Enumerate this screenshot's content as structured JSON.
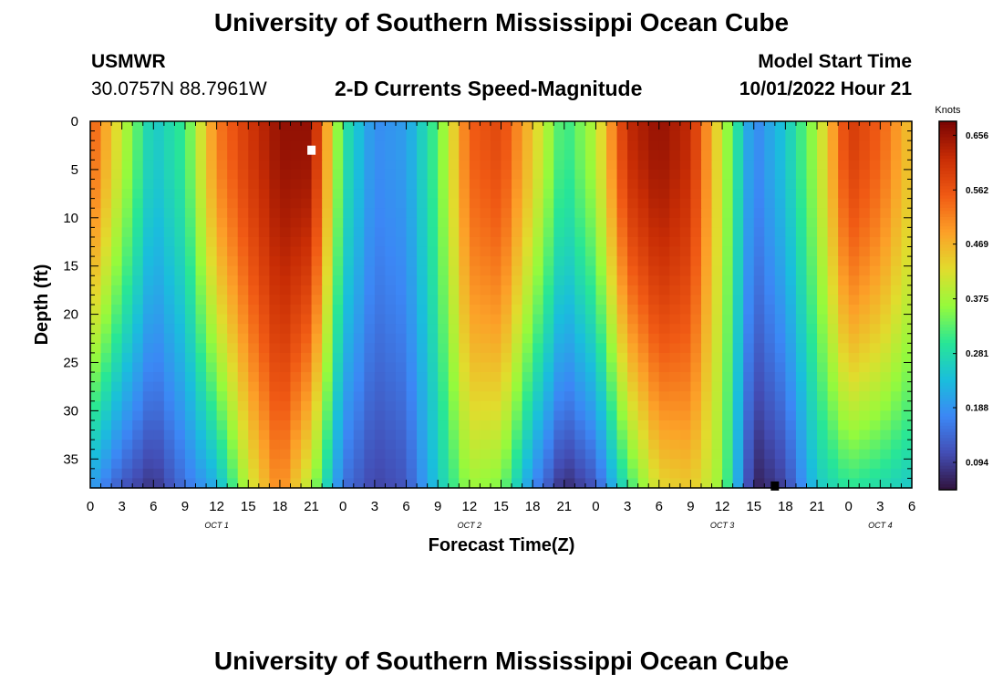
{
  "header": {
    "title": "University of Southern Mississippi Ocean Cube",
    "station": "USMWR",
    "coords": "30.0757N  88.7961W",
    "subtitle": "2-D Currents Speed-Magnitude",
    "model_start_label": "Model Start Time",
    "model_start_value": "10/01/2022 Hour 21"
  },
  "footer": {
    "title": "University of Southern Mississippi Ocean Cube"
  },
  "chart_data": {
    "type": "heatmap",
    "title": "2-D Currents Speed-Magnitude",
    "xlabel": "Forecast Time(Z)",
    "ylabel": "Depth (ft)",
    "x_ticks": [
      "0",
      "3",
      "6",
      "9",
      "12",
      "15",
      "18",
      "21",
      "0",
      "3",
      "6",
      "9",
      "12",
      "15",
      "18",
      "21",
      "0",
      "3",
      "6",
      "9",
      "12",
      "15",
      "18",
      "21",
      "0",
      "3",
      "6"
    ],
    "x_range_hours": [
      0,
      78
    ],
    "day_labels": [
      {
        "label": "OCT 1",
        "hour": 12
      },
      {
        "label": "OCT 2",
        "hour": 36
      },
      {
        "label": "OCT 3",
        "hour": 60
      },
      {
        "label": "OCT 4",
        "hour": 75
      }
    ],
    "y_ticks": [
      "0",
      "5",
      "10",
      "15",
      "20",
      "25",
      "30",
      "35"
    ],
    "y_tick_values": [
      0,
      5,
      10,
      15,
      20,
      25,
      30,
      35
    ],
    "y_range_ft": [
      0,
      38
    ],
    "colorbar": {
      "unit": "Knots",
      "ticks": [
        "0.656",
        "0.562",
        "0.469",
        "0.375",
        "0.281",
        "0.188",
        "0.094"
      ],
      "tick_values": [
        0.656,
        0.562,
        0.469,
        0.375,
        0.281,
        0.188,
        0.094
      ],
      "range": [
        0.047,
        0.68
      ]
    },
    "grid": {
      "hours": [
        0,
        3,
        6,
        9,
        12,
        15,
        18,
        21,
        24,
        27,
        30,
        33,
        36,
        39,
        42,
        45,
        48,
        51,
        54,
        57,
        60,
        63,
        66,
        69,
        72,
        75,
        78
      ],
      "surface_speed": [
        0.56,
        0.4,
        0.25,
        0.31,
        0.52,
        0.6,
        0.66,
        0.66,
        0.3,
        0.18,
        0.2,
        0.33,
        0.55,
        0.58,
        0.45,
        0.3,
        0.39,
        0.62,
        0.66,
        0.62,
        0.4,
        0.17,
        0.25,
        0.38,
        0.6,
        0.55,
        0.45
      ],
      "bottom_speed": [
        0.2,
        0.12,
        0.08,
        0.15,
        0.22,
        0.4,
        0.52,
        0.38,
        0.15,
        0.1,
        0.12,
        0.25,
        0.37,
        0.35,
        0.18,
        0.07,
        0.12,
        0.3,
        0.43,
        0.45,
        0.36,
        0.06,
        0.1,
        0.25,
        0.3,
        0.28,
        0.25
      ]
    },
    "markers": [
      {
        "hour": 21,
        "depth": 3,
        "color": "#ffffff"
      },
      {
        "hour": 65,
        "depth": 37.8,
        "color": "#000000"
      }
    ]
  }
}
